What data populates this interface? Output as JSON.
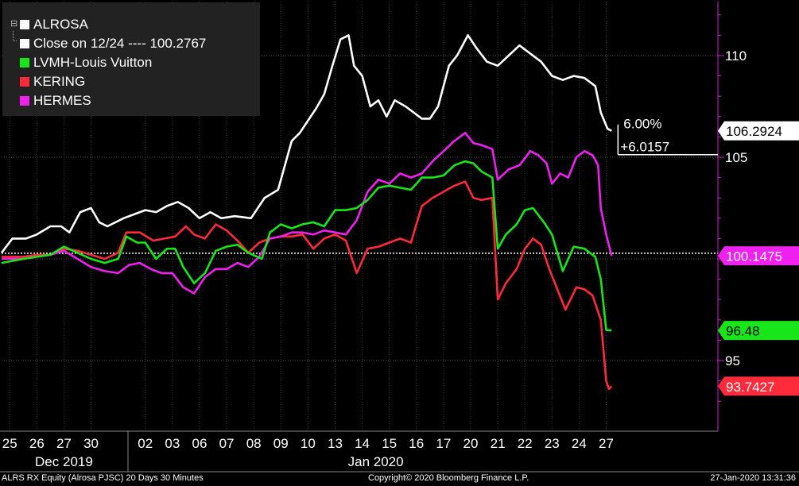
{
  "legend": {
    "entries": [
      {
        "label": "ALROSA",
        "color": "#ffffff"
      },
      {
        "label": "Close on 12/24 ---- 100.2767",
        "color": "#ffffff"
      },
      {
        "label": "LVMH-Louis Vuitton",
        "color": "#19e619"
      },
      {
        "label": "KERING",
        "color": "#ff2a3a"
      },
      {
        "label": "HERMES",
        "color": "#f020f0"
      }
    ]
  },
  "change_annotation": {
    "percent": "6.00%",
    "value": "+6.0157"
  },
  "footer": {
    "left": "ALRS RX Equity (Alrosa PJSC) 20 Days 30 Minutes",
    "center": "Copyright© 2020 Bloomberg Finance L.P.",
    "right": "27-Jan-2020 13:31:36"
  },
  "chart_data": {
    "type": "line",
    "grid": true,
    "legend_position": "top-left",
    "y_axis_side": "right",
    "ylim": [
      92.5,
      112.5
    ],
    "y_ticks": [
      95,
      105,
      110
    ],
    "reference_line": {
      "value": 100.2767,
      "style": "dotted"
    },
    "x_ticks": [
      {
        "label": "25",
        "x": 0
      },
      {
        "label": "26",
        "x": 1
      },
      {
        "label": "27",
        "x": 2
      },
      {
        "label": "30",
        "x": 3
      },
      {
        "label": "02",
        "x": 5
      },
      {
        "label": "03",
        "x": 6
      },
      {
        "label": "06",
        "x": 7
      },
      {
        "label": "07",
        "x": 8
      },
      {
        "label": "08",
        "x": 9
      },
      {
        "label": "09",
        "x": 10
      },
      {
        "label": "10",
        "x": 11
      },
      {
        "label": "13",
        "x": 12
      },
      {
        "label": "14",
        "x": 13
      },
      {
        "label": "15",
        "x": 14
      },
      {
        "label": "16",
        "x": 15
      },
      {
        "label": "17",
        "x": 16
      },
      {
        "label": "20",
        "x": 17
      },
      {
        "label": "21",
        "x": 18
      },
      {
        "label": "22",
        "x": 19
      },
      {
        "label": "23",
        "x": 20
      },
      {
        "label": "24",
        "x": 21
      },
      {
        "label": "27",
        "x": 22
      }
    ],
    "x_groups": [
      {
        "label": "Dec 2019",
        "from": 0,
        "to": 4
      },
      {
        "label": "Jan 2020",
        "from": 4.2,
        "to": 22.8
      }
    ],
    "x_range": [
      -0.3,
      23.1
    ],
    "series": [
      {
        "name": "ALROSA",
        "color": "#ffffff",
        "last_label": "106.2924",
        "points": [
          [
            -0.3,
            100.3
          ],
          [
            0.1,
            101.0
          ],
          [
            0.6,
            101.0
          ],
          [
            1.0,
            101.2
          ],
          [
            1.5,
            101.6
          ],
          [
            1.9,
            101.6
          ],
          [
            2.2,
            101.3
          ],
          [
            2.6,
            102.3
          ],
          [
            3.0,
            102.5
          ],
          [
            3.3,
            101.8
          ],
          [
            3.6,
            101.6
          ],
          [
            4.2,
            102.0
          ],
          [
            5.0,
            102.4
          ],
          [
            5.4,
            102.3
          ],
          [
            5.8,
            102.6
          ],
          [
            6.2,
            102.8
          ],
          [
            6.6,
            102.5
          ],
          [
            7.0,
            102.0
          ],
          [
            7.4,
            102.3
          ],
          [
            7.8,
            102.0
          ],
          [
            8.3,
            102.1
          ],
          [
            8.9,
            102.0
          ],
          [
            9.4,
            103.0
          ],
          [
            9.9,
            103.4
          ],
          [
            10.4,
            105.8
          ],
          [
            10.7,
            106.2
          ],
          [
            11.0,
            106.8
          ],
          [
            11.3,
            107.4
          ],
          [
            11.6,
            108.1
          ],
          [
            11.9,
            109.5
          ],
          [
            12.2,
            110.8
          ],
          [
            12.5,
            111.0
          ],
          [
            12.7,
            109.5
          ],
          [
            13.0,
            109.0
          ],
          [
            13.3,
            107.5
          ],
          [
            13.6,
            107.8
          ],
          [
            13.9,
            107.0
          ],
          [
            14.2,
            107.8
          ],
          [
            14.6,
            107.5
          ],
          [
            14.9,
            107.2
          ],
          [
            15.2,
            106.9
          ],
          [
            15.5,
            106.9
          ],
          [
            15.8,
            107.5
          ],
          [
            16.2,
            109.5
          ],
          [
            16.5,
            110.0
          ],
          [
            16.9,
            111.0
          ],
          [
            17.2,
            110.4
          ],
          [
            17.6,
            109.7
          ],
          [
            18.0,
            109.5
          ],
          [
            18.4,
            110.0
          ],
          [
            18.8,
            110.5
          ],
          [
            19.2,
            110.1
          ],
          [
            19.6,
            109.7
          ],
          [
            20.0,
            109.0
          ],
          [
            20.4,
            108.8
          ],
          [
            20.8,
            109.0
          ],
          [
            21.2,
            108.9
          ],
          [
            21.6,
            108.5
          ],
          [
            21.8,
            107.2
          ],
          [
            22.05,
            106.4
          ],
          [
            22.2,
            106.3
          ]
        ]
      },
      {
        "name": "LVMH-Louis Vuitton",
        "color": "#19e619",
        "last_label": "96.48",
        "points": [
          [
            -0.3,
            99.8
          ],
          [
            0.5,
            100.0
          ],
          [
            1.0,
            100.1
          ],
          [
            1.5,
            100.2
          ],
          [
            2.0,
            100.6
          ],
          [
            2.5,
            100.3
          ],
          [
            3.0,
            100.0
          ],
          [
            3.5,
            99.8
          ],
          [
            4.0,
            100.0
          ],
          [
            4.3,
            101.1
          ],
          [
            4.7,
            100.8
          ],
          [
            5.0,
            100.8
          ],
          [
            5.4,
            100.0
          ],
          [
            5.8,
            100.5
          ],
          [
            6.1,
            100.5
          ],
          [
            6.4,
            99.6
          ],
          [
            6.8,
            98.8
          ],
          [
            7.2,
            99.3
          ],
          [
            7.6,
            100.4
          ],
          [
            8.0,
            100.6
          ],
          [
            8.4,
            100.7
          ],
          [
            8.8,
            100.3
          ],
          [
            9.3,
            100.0
          ],
          [
            9.6,
            101.3
          ],
          [
            10.0,
            101.7
          ],
          [
            10.4,
            101.5
          ],
          [
            10.8,
            101.7
          ],
          [
            11.2,
            101.8
          ],
          [
            11.6,
            101.6
          ],
          [
            12.0,
            102.4
          ],
          [
            12.4,
            102.4
          ],
          [
            12.8,
            102.5
          ],
          [
            13.2,
            102.9
          ],
          [
            13.6,
            103.5
          ],
          [
            14.0,
            103.6
          ],
          [
            14.4,
            103.5
          ],
          [
            14.8,
            103.4
          ],
          [
            15.2,
            104.0
          ],
          [
            15.6,
            104.0
          ],
          [
            16.0,
            104.1
          ],
          [
            16.4,
            104.6
          ],
          [
            16.8,
            104.8
          ],
          [
            17.1,
            104.7
          ],
          [
            17.4,
            104.3
          ],
          [
            17.8,
            104.0
          ],
          [
            18.0,
            100.5
          ],
          [
            18.3,
            101.2
          ],
          [
            18.7,
            101.7
          ],
          [
            19.0,
            102.4
          ],
          [
            19.3,
            102.5
          ],
          [
            19.7,
            101.8
          ],
          [
            20.0,
            101.2
          ],
          [
            20.4,
            99.4
          ],
          [
            20.8,
            100.6
          ],
          [
            21.2,
            100.5
          ],
          [
            21.6,
            100.1
          ],
          [
            21.8,
            99.0
          ],
          [
            22.0,
            96.5
          ],
          [
            22.2,
            96.48
          ]
        ]
      },
      {
        "name": "KERING",
        "color": "#ff2a3a",
        "last_label": "93.7427",
        "points": [
          [
            -0.3,
            100.1
          ],
          [
            0.5,
            100.1
          ],
          [
            1.0,
            100.2
          ],
          [
            1.5,
            100.2
          ],
          [
            2.0,
            100.5
          ],
          [
            2.5,
            100.4
          ],
          [
            3.0,
            100.2
          ],
          [
            3.5,
            100.0
          ],
          [
            4.0,
            100.3
          ],
          [
            4.3,
            101.3
          ],
          [
            4.8,
            101.3
          ],
          [
            5.3,
            100.9
          ],
          [
            5.7,
            101.0
          ],
          [
            6.1,
            101.1
          ],
          [
            6.5,
            101.6
          ],
          [
            6.8,
            101.2
          ],
          [
            7.2,
            101.0
          ],
          [
            7.6,
            101.7
          ],
          [
            8.0,
            101.4
          ],
          [
            8.4,
            100.9
          ],
          [
            8.8,
            100.3
          ],
          [
            9.2,
            100.8
          ],
          [
            9.6,
            101.0
          ],
          [
            10.0,
            101.1
          ],
          [
            10.4,
            101.1
          ],
          [
            10.8,
            101.2
          ],
          [
            11.2,
            100.5
          ],
          [
            11.6,
            101.0
          ],
          [
            12.0,
            101.2
          ],
          [
            12.4,
            100.9
          ],
          [
            12.8,
            99.3
          ],
          [
            13.2,
            100.5
          ],
          [
            13.6,
            100.6
          ],
          [
            14.0,
            100.8
          ],
          [
            14.4,
            101.0
          ],
          [
            14.8,
            100.8
          ],
          [
            15.2,
            102.6
          ],
          [
            15.6,
            103.0
          ],
          [
            16.0,
            103.3
          ],
          [
            16.4,
            103.6
          ],
          [
            16.8,
            103.8
          ],
          [
            17.1,
            103.0
          ],
          [
            17.4,
            102.9
          ],
          [
            17.8,
            103.0
          ],
          [
            18.0,
            98.0
          ],
          [
            18.3,
            98.8
          ],
          [
            18.7,
            99.5
          ],
          [
            19.0,
            100.5
          ],
          [
            19.3,
            101.0
          ],
          [
            19.6,
            100.7
          ],
          [
            19.9,
            99.5
          ],
          [
            20.2,
            98.5
          ],
          [
            20.5,
            97.5
          ],
          [
            20.9,
            98.6
          ],
          [
            21.2,
            98.5
          ],
          [
            21.5,
            98.2
          ],
          [
            21.8,
            97.0
          ],
          [
            22.0,
            94.0
          ],
          [
            22.1,
            93.6
          ],
          [
            22.2,
            93.74
          ]
        ]
      },
      {
        "name": "HERMES",
        "color": "#f020f0",
        "last_label": "100.1475",
        "points": [
          [
            -0.3,
            100.0
          ],
          [
            0.5,
            100.0
          ],
          [
            1.0,
            100.1
          ],
          [
            1.5,
            100.2
          ],
          [
            2.0,
            100.4
          ],
          [
            2.5,
            100.0
          ],
          [
            3.0,
            99.6
          ],
          [
            3.5,
            99.4
          ],
          [
            4.0,
            99.3
          ],
          [
            4.4,
            99.7
          ],
          [
            4.8,
            99.8
          ],
          [
            5.2,
            99.5
          ],
          [
            5.6,
            99.3
          ],
          [
            6.0,
            99.3
          ],
          [
            6.4,
            98.6
          ],
          [
            6.8,
            98.3
          ],
          [
            7.2,
            99.1
          ],
          [
            7.6,
            99.5
          ],
          [
            8.0,
            99.5
          ],
          [
            8.4,
            99.8
          ],
          [
            8.8,
            99.6
          ],
          [
            9.2,
            100.1
          ],
          [
            9.6,
            101.0
          ],
          [
            10.0,
            101.1
          ],
          [
            10.4,
            101.3
          ],
          [
            10.8,
            101.3
          ],
          [
            11.2,
            101.2
          ],
          [
            11.6,
            101.4
          ],
          [
            12.0,
            101.3
          ],
          [
            12.4,
            101.2
          ],
          [
            12.8,
            101.9
          ],
          [
            13.2,
            103.3
          ],
          [
            13.6,
            103.9
          ],
          [
            14.0,
            103.7
          ],
          [
            14.4,
            104.2
          ],
          [
            14.8,
            104.0
          ],
          [
            15.2,
            104.2
          ],
          [
            15.6,
            104.8
          ],
          [
            16.0,
            105.3
          ],
          [
            16.4,
            105.8
          ],
          [
            16.8,
            106.2
          ],
          [
            17.1,
            105.7
          ],
          [
            17.4,
            105.6
          ],
          [
            17.8,
            105.4
          ],
          [
            18.0,
            103.9
          ],
          [
            18.4,
            104.4
          ],
          [
            18.8,
            104.6
          ],
          [
            19.2,
            105.3
          ],
          [
            19.5,
            105.1
          ],
          [
            19.8,
            104.7
          ],
          [
            20.0,
            103.7
          ],
          [
            20.3,
            104.2
          ],
          [
            20.6,
            104.0
          ],
          [
            20.9,
            105.0
          ],
          [
            21.2,
            105.3
          ],
          [
            21.5,
            105.1
          ],
          [
            21.7,
            104.6
          ],
          [
            21.8,
            102.5
          ],
          [
            22.0,
            101.2
          ],
          [
            22.2,
            100.15
          ]
        ]
      }
    ]
  }
}
